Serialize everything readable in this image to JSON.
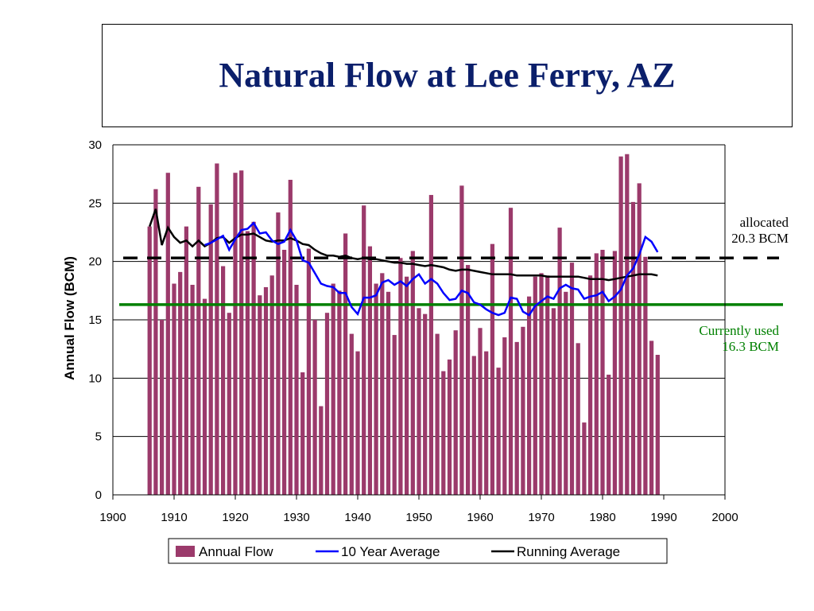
{
  "title": "Natural Flow at Lee Ferry, AZ",
  "annotations": {
    "allocated_line1": "allocated",
    "allocated_line2": "20.3 BCM",
    "used_line1": "Currently used",
    "used_line2": "16.3 BCM"
  },
  "colors": {
    "bar": "#9b3a6b",
    "ten_year": "#0000ff",
    "running": "#000000",
    "allocated": "#000000",
    "used": "#008000",
    "title": "#0b1f6b"
  },
  "chart_data": {
    "type": "bar",
    "title": "Natural Flow at Lee Ferry, AZ",
    "xlabel": "",
    "ylabel": "Annual Flow  (BCM)",
    "xlim": [
      1900,
      2000
    ],
    "ylim": [
      0,
      30
    ],
    "xticks": [
      1900,
      1910,
      1920,
      1930,
      1940,
      1950,
      1960,
      1970,
      1980,
      1990,
      2000
    ],
    "yticks": [
      0,
      5,
      10,
      15,
      20,
      25,
      30
    ],
    "grid": "horizontal",
    "legend_position": "bottom",
    "legend": [
      "Annual Flow",
      "10 Year Average",
      "Running Average"
    ],
    "years": [
      1906,
      1907,
      1908,
      1909,
      1910,
      1911,
      1912,
      1913,
      1914,
      1915,
      1916,
      1917,
      1918,
      1919,
      1920,
      1921,
      1922,
      1923,
      1924,
      1925,
      1926,
      1927,
      1928,
      1929,
      1930,
      1931,
      1932,
      1933,
      1934,
      1935,
      1936,
      1937,
      1938,
      1939,
      1940,
      1941,
      1942,
      1943,
      1944,
      1945,
      1946,
      1947,
      1948,
      1949,
      1950,
      1951,
      1952,
      1953,
      1954,
      1955,
      1956,
      1957,
      1958,
      1959,
      1960,
      1961,
      1962,
      1963,
      1964,
      1965,
      1966,
      1967,
      1968,
      1969,
      1970,
      1971,
      1972,
      1973,
      1974,
      1975,
      1976,
      1977,
      1978,
      1979,
      1980,
      1981,
      1982,
      1983,
      1984,
      1985,
      1986,
      1987,
      1988,
      1989
    ],
    "series": [
      {
        "name": "Annual Flow",
        "values": [
          23.0,
          26.2,
          15.0,
          27.6,
          18.1,
          19.1,
          23.0,
          18.0,
          26.4,
          16.8,
          24.9,
          28.4,
          19.6,
          15.6,
          27.6,
          27.8,
          22.6,
          23.4,
          17.1,
          17.8,
          18.8,
          24.2,
          21.0,
          27.0,
          18.0,
          10.5,
          21.1,
          15.0,
          7.6,
          15.6,
          18.1,
          17.5,
          22.4,
          13.8,
          12.3,
          24.8,
          21.3,
          18.1,
          19.0,
          17.4,
          13.7,
          20.3,
          18.7,
          20.9,
          16.0,
          15.5,
          25.7,
          13.8,
          10.6,
          11.6,
          14.1,
          26.5,
          19.7,
          11.9,
          14.3,
          12.3,
          21.5,
          10.9,
          13.5,
          24.6,
          13.1,
          14.4,
          17.0,
          18.7,
          19.0,
          18.8,
          16.0,
          22.9,
          17.4,
          19.9,
          13.0,
          6.2,
          18.8,
          20.7,
          21.0,
          10.3,
          20.9,
          29.0,
          29.2,
          25.1,
          26.7,
          20.4,
          13.2,
          12.0
        ]
      },
      {
        "name": "10 Year Average",
        "x": [
          1915,
          1916,
          1917,
          1918,
          1919,
          1920,
          1921,
          1922,
          1923,
          1924,
          1925,
          1926,
          1927,
          1928,
          1929,
          1930,
          1931,
          1932,
          1933,
          1934,
          1935,
          1936,
          1937,
          1938,
          1939,
          1940,
          1941,
          1942,
          1943,
          1944,
          1945,
          1946,
          1947,
          1948,
          1949,
          1950,
          1951,
          1952,
          1953,
          1954,
          1955,
          1956,
          1957,
          1958,
          1959,
          1960,
          1961,
          1962,
          1963,
          1964,
          1965,
          1966,
          1967,
          1968,
          1969,
          1970,
          1971,
          1972,
          1973,
          1974,
          1975,
          1976,
          1977,
          1978,
          1979,
          1980,
          1981,
          1982,
          1983,
          1984,
          1985,
          1986,
          1987,
          1988,
          1989
        ],
        "values": [
          21.4,
          21.6,
          21.9,
          22.2,
          21.0,
          21.9,
          22.7,
          22.8,
          23.3,
          22.4,
          22.5,
          21.8,
          21.5,
          21.7,
          22.7,
          21.8,
          20.1,
          19.9,
          19.0,
          18.1,
          17.9,
          17.8,
          17.3,
          17.3,
          16.1,
          15.5,
          16.9,
          16.9,
          17.1,
          18.2,
          18.4,
          18.0,
          18.3,
          17.9,
          18.5,
          18.9,
          18.1,
          18.5,
          18.1,
          17.3,
          16.7,
          16.8,
          17.5,
          17.3,
          16.5,
          16.3,
          15.9,
          15.6,
          15.4,
          15.6,
          16.9,
          16.8,
          15.7,
          15.4,
          16.2,
          16.6,
          17.0,
          16.8,
          17.7,
          18.0,
          17.7,
          17.6,
          16.8,
          17.0,
          17.1,
          17.4,
          16.6,
          17.0,
          17.6,
          18.8,
          19.4,
          20.6,
          22.1,
          21.7,
          20.8
        ]
      },
      {
        "name": "Running Average",
        "x": [
          1906,
          1907,
          1908,
          1909,
          1910,
          1911,
          1912,
          1913,
          1914,
          1915,
          1916,
          1917,
          1918,
          1919,
          1920,
          1921,
          1922,
          1923,
          1924,
          1925,
          1926,
          1927,
          1928,
          1929,
          1930,
          1931,
          1932,
          1933,
          1934,
          1935,
          1936,
          1937,
          1938,
          1939,
          1940,
          1941,
          1942,
          1943,
          1944,
          1945,
          1946,
          1947,
          1948,
          1949,
          1950,
          1951,
          1952,
          1953,
          1954,
          1955,
          1956,
          1957,
          1958,
          1959,
          1960,
          1961,
          1962,
          1963,
          1964,
          1965,
          1966,
          1967,
          1968,
          1969,
          1970,
          1971,
          1972,
          1973,
          1974,
          1975,
          1976,
          1977,
          1978,
          1979,
          1980,
          1981,
          1982,
          1983,
          1984,
          1985,
          1986,
          1987,
          1988,
          1989
        ],
        "values": [
          23.0,
          24.5,
          21.4,
          22.9,
          22.1,
          21.6,
          21.8,
          21.3,
          21.8,
          21.3,
          21.6,
          22.0,
          22.1,
          21.6,
          22.0,
          22.3,
          22.3,
          22.4,
          22.1,
          21.8,
          21.7,
          21.8,
          21.8,
          22.0,
          21.8,
          21.5,
          21.4,
          21.0,
          20.7,
          20.5,
          20.5,
          20.4,
          20.5,
          20.3,
          20.2,
          20.3,
          20.2,
          20.2,
          20.1,
          20.0,
          19.9,
          19.9,
          19.8,
          19.8,
          19.7,
          19.6,
          19.7,
          19.6,
          19.5,
          19.3,
          19.2,
          19.3,
          19.3,
          19.2,
          19.1,
          19.0,
          18.9,
          18.9,
          18.9,
          18.9,
          18.8,
          18.8,
          18.8,
          18.8,
          18.8,
          18.7,
          18.7,
          18.7,
          18.7,
          18.7,
          18.7,
          18.6,
          18.5,
          18.5,
          18.5,
          18.4,
          18.5,
          18.6,
          18.7,
          18.8,
          18.9,
          18.9,
          18.9,
          18.8
        ]
      }
    ],
    "reference_lines": [
      {
        "label": "allocated 20.3 BCM",
        "y": 20.3,
        "style": "dashed"
      },
      {
        "label": "Currently used 16.3 BCM",
        "y": 16.3,
        "style": "solid"
      }
    ]
  }
}
